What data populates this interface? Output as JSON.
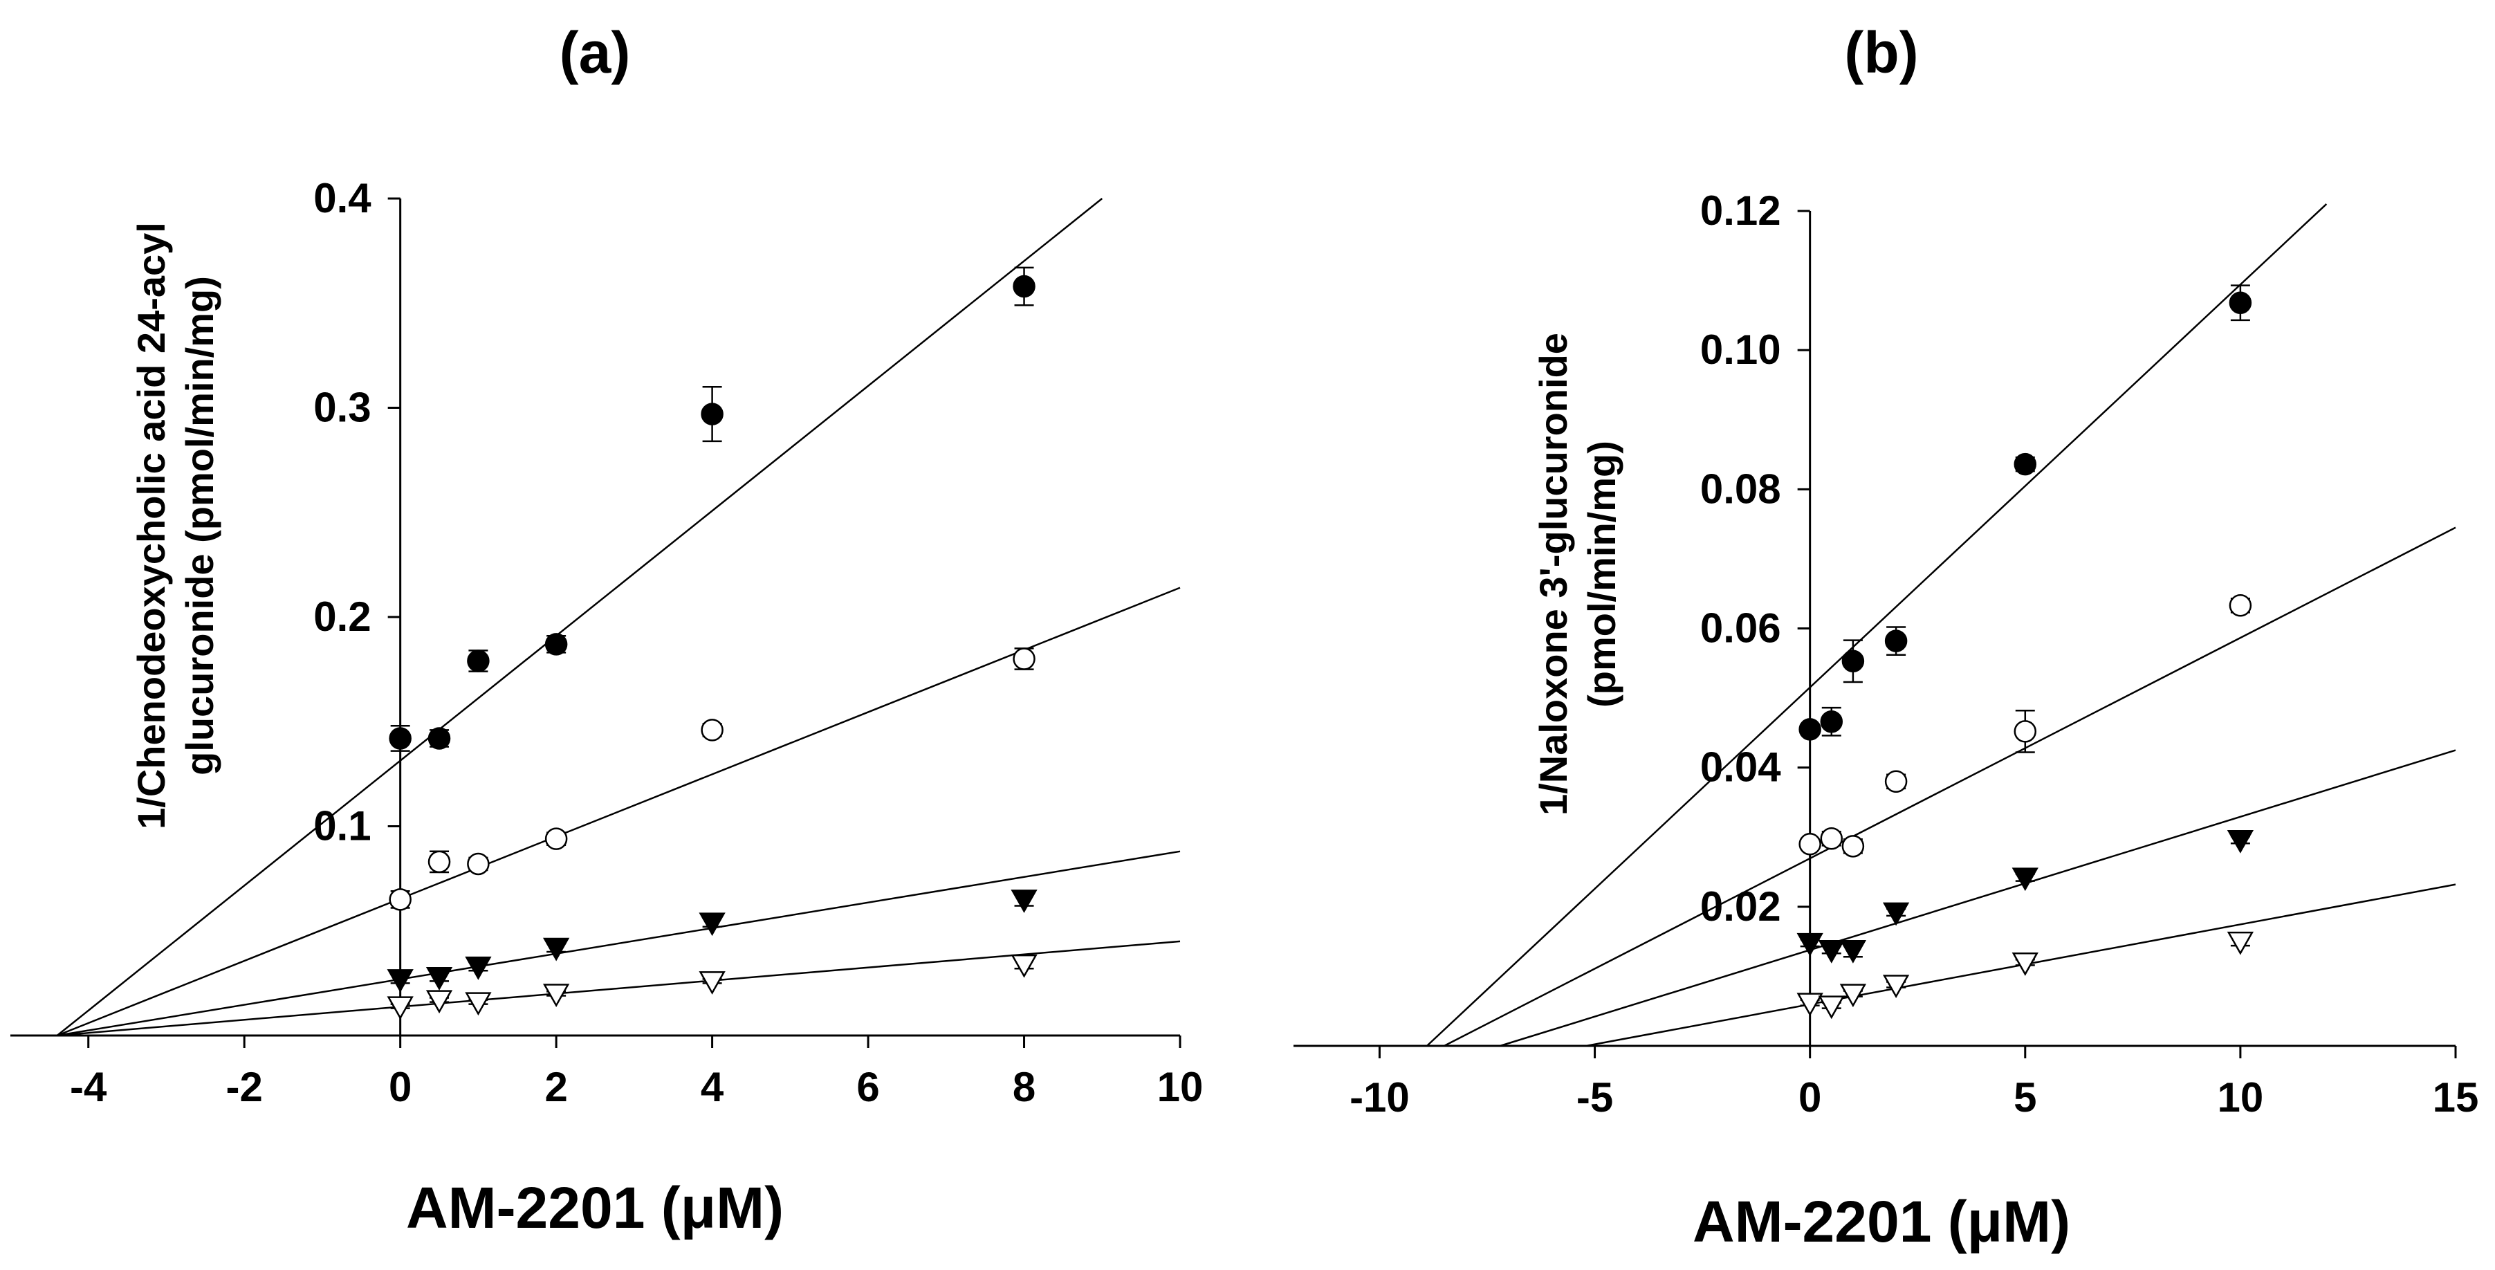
{
  "chart_data": [
    {
      "type": "scatter",
      "title": "(a)",
      "xlabel": "AM-2201 (μM)",
      "ylabel_lines": [
        "1/Chenodeoxycholic acid 24-acyl",
        "glucuronide  (pmol/min/mg)"
      ],
      "xlim": [
        -5,
        10
      ],
      "ylim": [
        0,
        0.4
      ],
      "xticks": [
        -4,
        -2,
        0,
        2,
        4,
        6,
        8,
        10
      ],
      "xtick_labels": [
        "-4",
        "-2",
        "0",
        "2",
        "4",
        "6",
        "8",
        "10"
      ],
      "yticks": [
        0.1,
        0.2,
        0.3,
        0.4
      ],
      "ytick_labels": [
        "0.1",
        "0.2",
        "0.3",
        "0.4"
      ],
      "grid": false,
      "legend": "none",
      "series": [
        {
          "marker": "filled-circle",
          "x": [
            0,
            0.5,
            1,
            2,
            4,
            8
          ],
          "y": [
            0.142,
            0.142,
            0.179,
            0.187,
            0.297,
            0.358
          ],
          "err": [
            0.006,
            0.004,
            0.005,
            0.004,
            0.013,
            0.009
          ],
          "line": [
            [
              -4.4,
              0
            ],
            [
              9.0,
              0.4
            ]
          ]
        },
        {
          "marker": "open-circle",
          "x": [
            0,
            0.5,
            1,
            2,
            4,
            8
          ],
          "y": [
            0.065,
            0.083,
            0.082,
            0.094,
            0.146,
            0.18
          ],
          "err": [
            0.004,
            0.005,
            0.003,
            0.003,
            0.003,
            0.005
          ],
          "line": [
            [
              -4.4,
              0
            ],
            [
              10,
              0.214
            ]
          ]
        },
        {
          "marker": "filled-triangle-down",
          "x": [
            0,
            0.5,
            1,
            2,
            4,
            8
          ],
          "y": [
            0.027,
            0.028,
            0.033,
            0.042,
            0.054,
            0.065
          ],
          "err": [
            0.002,
            0.002,
            0.002,
            0.002,
            0.002,
            0.003
          ],
          "line": [
            [
              -4.4,
              0
            ],
            [
              10,
              0.088
            ]
          ]
        },
        {
          "marker": "open-triangle-down",
          "x": [
            0,
            0.5,
            1,
            2,
            4,
            8
          ],
          "y": [
            0.014,
            0.017,
            0.016,
            0.02,
            0.026,
            0.034
          ],
          "err": [
            0.001,
            0.001,
            0.001,
            0.001,
            0.001,
            0.002
          ],
          "line": [
            [
              -4.4,
              0
            ],
            [
              10,
              0.045
            ]
          ]
        }
      ]
    },
    {
      "type": "scatter",
      "title": "(b)",
      "xlabel": "AM-2201 (μM)",
      "ylabel_lines": [
        "1/Naloxone 3'-glucuronide",
        "(pmol/min/mg)"
      ],
      "xlim": [
        -12,
        15
      ],
      "ylim": [
        0,
        0.12
      ],
      "xticks": [
        -10,
        -5,
        0,
        5,
        10,
        15
      ],
      "xtick_labels": [
        "-10",
        "-5",
        "0",
        "5",
        "10",
        "15"
      ],
      "yticks": [
        0.02,
        0.04,
        0.06,
        0.08,
        0.1,
        0.12
      ],
      "ytick_labels": [
        "0.02",
        "0.04",
        "0.06",
        "0.08",
        "0.10",
        "0.12"
      ],
      "grid": false,
      "legend": "none",
      "series": [
        {
          "marker": "filled-circle",
          "x": [
            0,
            0.5,
            1,
            2,
            5,
            10
          ],
          "y": [
            0.0455,
            0.0466,
            0.0553,
            0.0582,
            0.0836,
            0.1068
          ],
          "err": [
            0.0007,
            0.002,
            0.003,
            0.002,
            0.001,
            0.0025
          ],
          "line": [
            [
              -8.9,
              0
            ],
            [
              12.0,
              0.121
            ]
          ]
        },
        {
          "marker": "open-circle",
          "x": [
            0,
            0.5,
            1,
            2,
            5,
            10
          ],
          "y": [
            0.029,
            0.0298,
            0.0287,
            0.038,
            0.0452,
            0.0633
          ],
          "err": [
            0.0005,
            0.001,
            0.001,
            0.001,
            0.003,
            0.001
          ],
          "line": [
            [
              -8.5,
              0
            ],
            [
              15,
              0.0745
            ]
          ]
        },
        {
          "marker": "filled-triangle-down",
          "x": [
            0,
            0.5,
            1,
            2,
            5,
            10
          ],
          "y": [
            0.0148,
            0.0138,
            0.0138,
            0.0192,
            0.0242,
            0.0296
          ],
          "err": [
            0.0005,
            0.0005,
            0.001,
            0.0005,
            0.0005,
            0.0005
          ],
          "line": [
            [
              -7.2,
              0
            ],
            [
              15,
              0.0425
            ]
          ]
        },
        {
          "marker": "open-triangle-down",
          "x": [
            0,
            0.5,
            1,
            2,
            5,
            10
          ],
          "y": [
            0.0062,
            0.0058,
            0.0075,
            0.0088,
            0.012,
            0.015
          ],
          "err": [
            0.0004,
            0.0004,
            0.0004,
            0.0004,
            0.0004,
            0.0006
          ],
          "line": [
            [
              -5.2,
              0
            ],
            [
              15,
              0.0232
            ]
          ]
        }
      ]
    }
  ]
}
